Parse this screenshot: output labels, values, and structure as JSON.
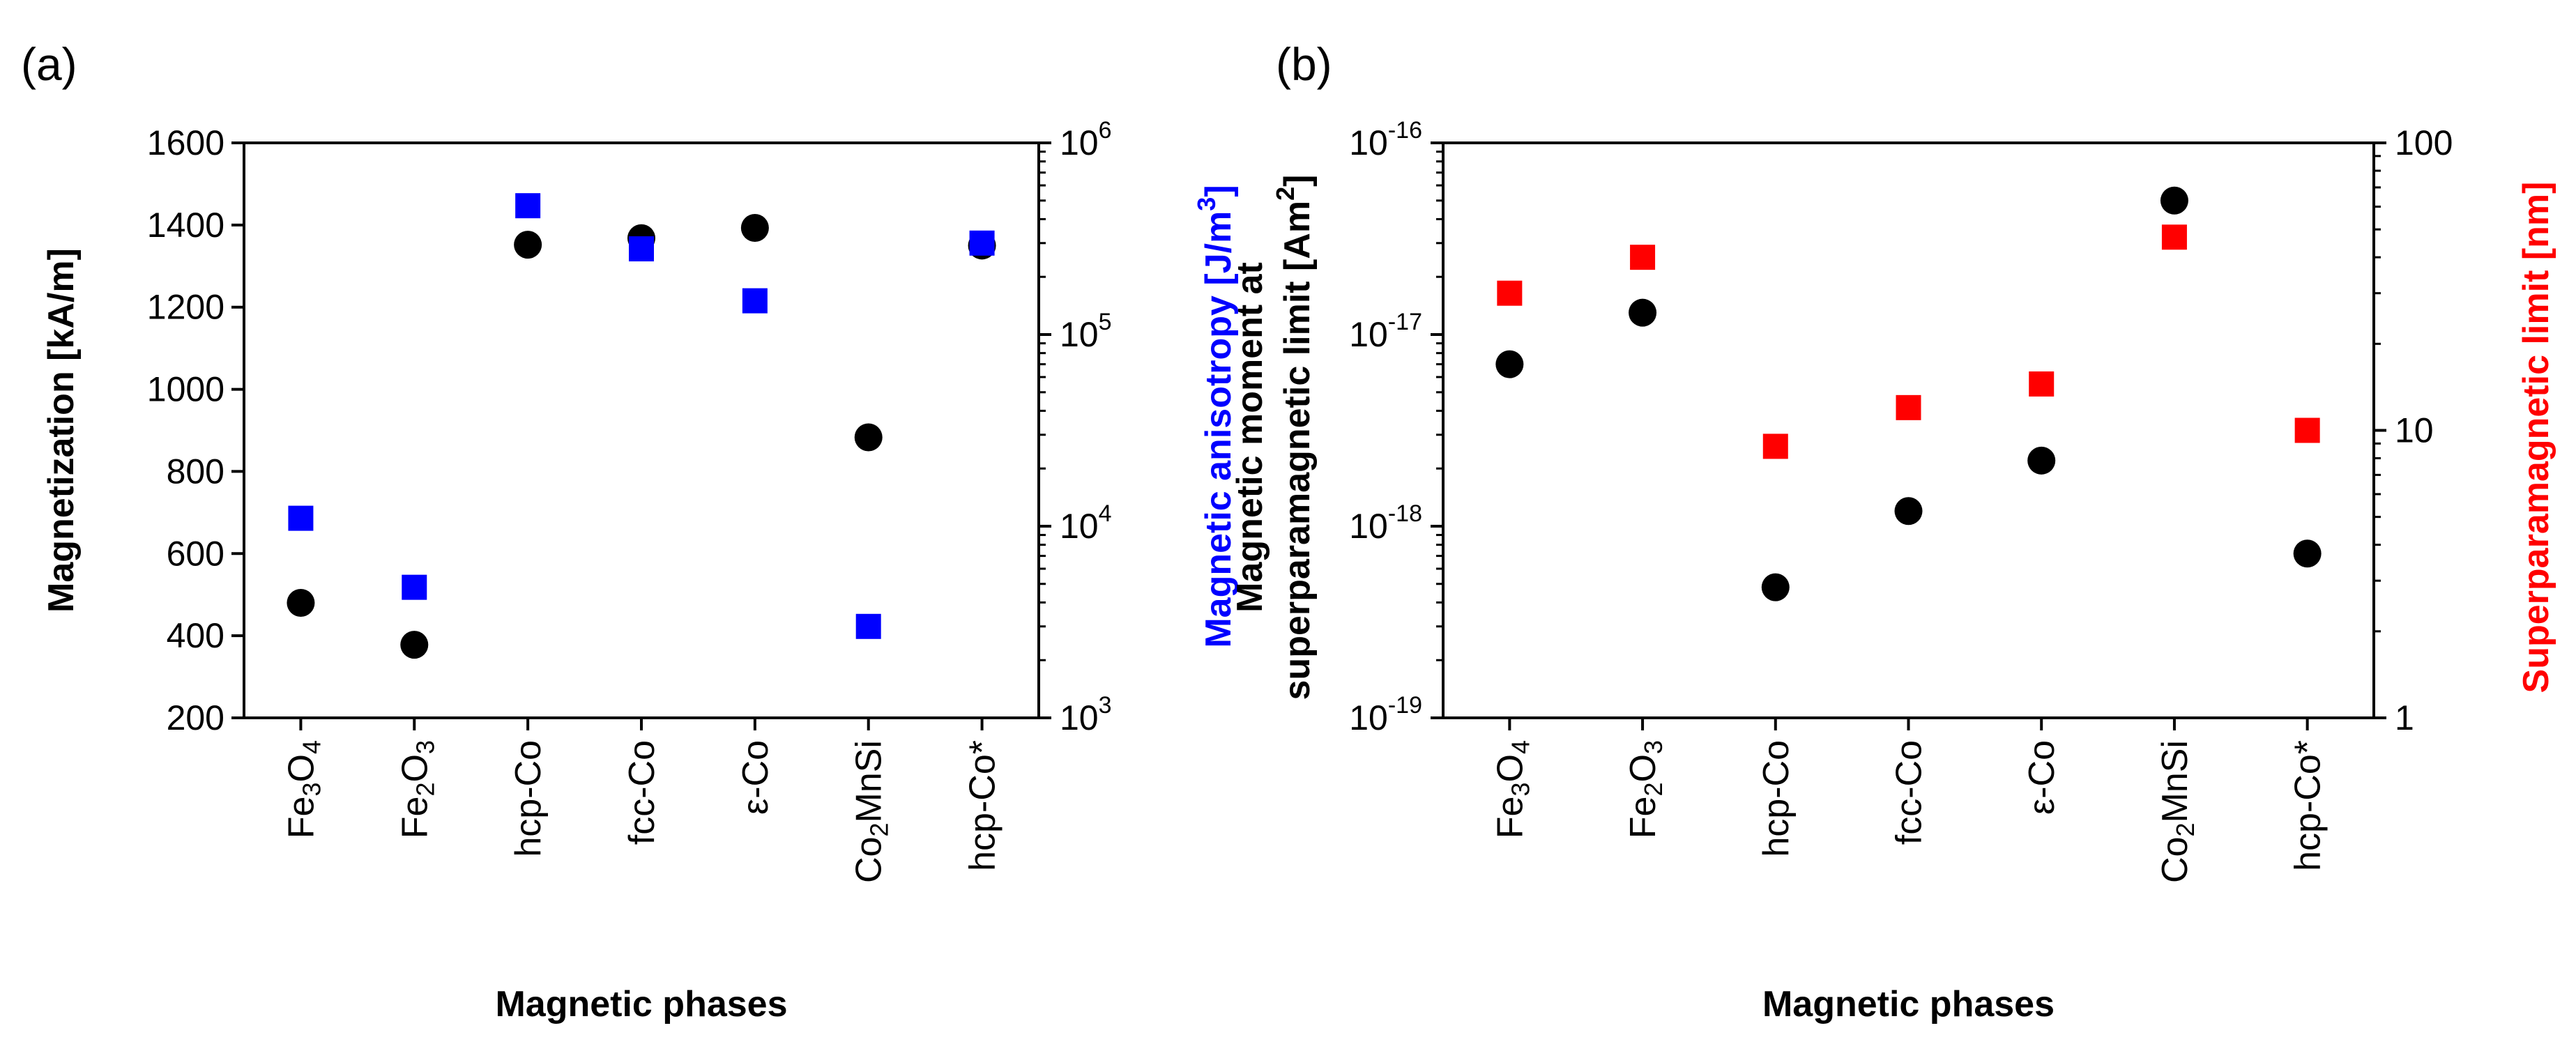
{
  "chart_data": [
    {
      "type": "scatter",
      "panel_label": "(a)",
      "categories": [
        "Fe3O4",
        "Fe2O3",
        "hcp-Co",
        "fcc-Co",
        "ε-Co",
        "Co2MnSi",
        "hcp-Co*"
      ],
      "category_labels": [
        {
          "base": "Fe",
          "sub1": "3",
          "mid": "O",
          "sub2": "4",
          "rest": ""
        },
        {
          "base": "Fe",
          "sub1": "2",
          "mid": "O",
          "sub2": "3",
          "rest": ""
        },
        {
          "base": "hcp-Co",
          "sub1": "",
          "mid": "",
          "sub2": "",
          "rest": ""
        },
        {
          "base": "fcc-Co",
          "sub1": "",
          "mid": "",
          "sub2": "",
          "rest": ""
        },
        {
          "base": "ε-Co",
          "sub1": "",
          "mid": "",
          "sub2": "",
          "rest": ""
        },
        {
          "base": "Co",
          "sub1": "2",
          "mid": "MnSi",
          "sub2": "",
          "rest": ""
        },
        {
          "base": "hcp-Co*",
          "sub1": "",
          "mid": "",
          "sub2": "",
          "rest": ""
        }
      ],
      "xlabel": "Magnetic phases",
      "ylabel_left": "Magnetization [kA/m]",
      "ylabel_right": {
        "main": "Magnetic anisotropy [J/m",
        "sup": "3",
        "close": "]"
      },
      "left_axis": {
        "scale": "linear",
        "min": 200,
        "max": 1600,
        "ticks": [
          200,
          400,
          600,
          800,
          1000,
          1200,
          1400,
          1600
        ]
      },
      "right_axis": {
        "scale": "log",
        "min_exp": 3,
        "max_exp": 6,
        "tick_exps": [
          3,
          4,
          5,
          6
        ],
        "base": "10"
      },
      "series": [
        {
          "name": "Magnetization",
          "axis": "left",
          "marker": "circle",
          "color": "#000000",
          "values": [
            480,
            378,
            1352,
            1368,
            1393,
            883,
            1350
          ]
        },
        {
          "name": "Magnetic anisotropy",
          "axis": "right",
          "marker": "square",
          "color": "#0000ff",
          "values": [
            11000,
            4800,
            470000,
            280000,
            150000,
            3000,
            300000
          ]
        }
      ]
    },
    {
      "type": "scatter",
      "panel_label": "(b)",
      "categories": [
        "Fe3O4",
        "Fe2O3",
        "hcp-Co",
        "fcc-Co",
        "ε-Co",
        "Co2MnSi",
        "hcp-Co*"
      ],
      "category_labels": [
        {
          "base": "Fe",
          "sub1": "3",
          "mid": "O",
          "sub2": "4",
          "rest": ""
        },
        {
          "base": "Fe",
          "sub1": "2",
          "mid": "O",
          "sub2": "3",
          "rest": ""
        },
        {
          "base": "hcp-Co",
          "sub1": "",
          "mid": "",
          "sub2": "",
          "rest": ""
        },
        {
          "base": "fcc-Co",
          "sub1": "",
          "mid": "",
          "sub2": "",
          "rest": ""
        },
        {
          "base": "ε-Co",
          "sub1": "",
          "mid": "",
          "sub2": "",
          "rest": ""
        },
        {
          "base": "Co",
          "sub1": "2",
          "mid": "MnSi",
          "sub2": "",
          "rest": ""
        },
        {
          "base": "hcp-Co*",
          "sub1": "",
          "mid": "",
          "sub2": "",
          "rest": ""
        }
      ],
      "xlabel": "Magnetic phases",
      "ylabel_left_line1": "Magnetic moment at",
      "ylabel_left_line2": {
        "main": "superparamagnetic limit [Am",
        "sup": "2",
        "close": "]"
      },
      "ylabel_right": "Superparamagnetic limit [nm]",
      "left_axis": {
        "scale": "log",
        "min_exp": -19,
        "max_exp": -16,
        "tick_exps": [
          -19,
          -18,
          -17,
          -16
        ],
        "base": "10"
      },
      "right_axis": {
        "scale": "log",
        "min": 1,
        "max": 100,
        "ticks": [
          1,
          10,
          100
        ]
      },
      "series": [
        {
          "name": "Magnetic moment at superparamagnetic limit",
          "axis": "left",
          "marker": "circle",
          "color": "#000000",
          "values": [
            7e-18,
            1.3e-17,
            4.8e-19,
            1.2e-18,
            2.2e-18,
            5e-17,
            7.2e-19
          ]
        },
        {
          "name": "Superparamagnetic limit",
          "axis": "right",
          "marker": "square",
          "color": "#ff0000",
          "values": [
            30,
            40,
            8.8,
            12,
            14.5,
            47,
            10
          ]
        }
      ]
    }
  ]
}
